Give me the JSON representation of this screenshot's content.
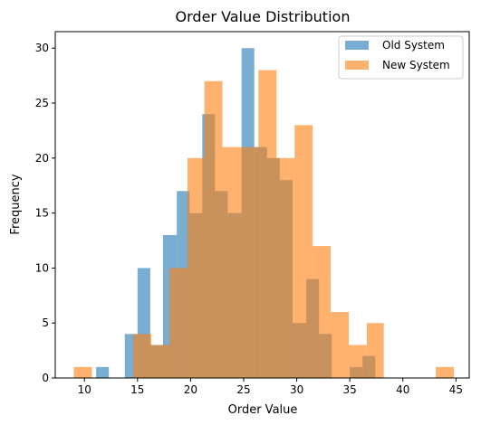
{
  "chart_data": {
    "type": "bar",
    "title": "Order Value Distribution",
    "xlabel": "Order Value",
    "ylabel": "Frequency",
    "xlim": [
      7.25,
      46.25
    ],
    "ylim": [
      0,
      31.5
    ],
    "xticks": [
      "10",
      "15",
      "20",
      "25",
      "30",
      "35",
      "40",
      "45"
    ],
    "yticks": [
      "0",
      "5",
      "10",
      "15",
      "20",
      "25",
      "30"
    ],
    "grid": false,
    "legend_position": "top-right",
    "series": [
      {
        "name": "Old System",
        "color": "#1f77b4",
        "opacity": 0.6,
        "bins": [
          [
            11.1,
            12.3,
            1
          ],
          [
            13.8,
            15.0,
            4
          ],
          [
            15.0,
            16.2,
            10
          ],
          [
            16.2,
            17.4,
            3
          ],
          [
            17.4,
            18.7,
            13
          ],
          [
            18.7,
            19.9,
            17
          ],
          [
            19.9,
            21.1,
            15
          ],
          [
            21.1,
            22.3,
            24
          ],
          [
            22.3,
            23.5,
            17
          ],
          [
            23.5,
            24.8,
            15
          ],
          [
            24.8,
            26.0,
            30
          ],
          [
            26.0,
            27.2,
            21
          ],
          [
            27.2,
            28.4,
            20
          ],
          [
            28.4,
            29.6,
            18
          ],
          [
            29.6,
            30.9,
            5
          ],
          [
            30.9,
            32.1,
            9
          ],
          [
            32.1,
            33.3,
            4
          ],
          [
            35.0,
            36.2,
            1
          ],
          [
            36.2,
            37.4,
            2
          ]
        ]
      },
      {
        "name": "New System",
        "color": "#ff7f0e",
        "opacity": 0.6,
        "bins": [
          [
            9.0,
            10.7,
            1
          ],
          [
            14.6,
            16.3,
            4
          ],
          [
            16.3,
            18.0,
            3
          ],
          [
            18.0,
            19.7,
            10
          ],
          [
            19.7,
            21.3,
            20
          ],
          [
            21.3,
            23.0,
            27
          ],
          [
            23.0,
            24.7,
            21
          ],
          [
            24.7,
            26.4,
            21
          ],
          [
            26.4,
            28.1,
            28
          ],
          [
            28.1,
            29.8,
            20
          ],
          [
            29.8,
            31.5,
            23
          ],
          [
            31.5,
            33.2,
            12
          ],
          [
            33.2,
            34.9,
            6
          ],
          [
            34.9,
            36.6,
            3
          ],
          [
            36.6,
            38.2,
            5
          ],
          [
            43.1,
            44.8,
            1
          ]
        ]
      }
    ]
  }
}
